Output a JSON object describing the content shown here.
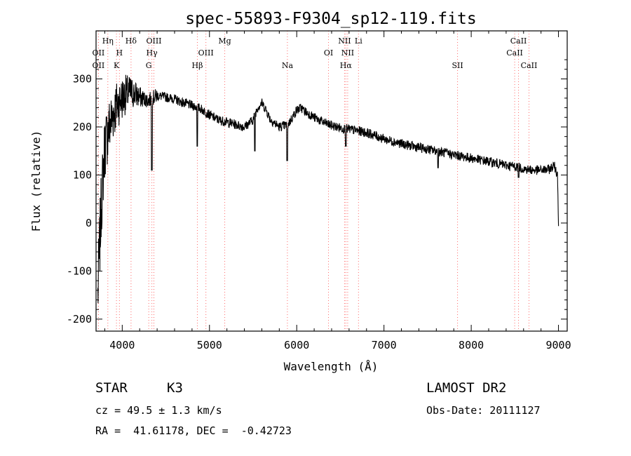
{
  "chart_data": {
    "type": "line",
    "title": "spec-55893-F9304_sp12-119.fits",
    "xlabel": "Wavelength (Å)",
    "ylabel": "Flux (relative)",
    "xlim": [
      3700,
      9100
    ],
    "ylim": [
      -225,
      400
    ],
    "x_ticks": [
      4000,
      5000,
      6000,
      7000,
      8000,
      9000
    ],
    "y_ticks": [
      -200,
      -100,
      0,
      100,
      200,
      300
    ],
    "series": [
      {
        "name": "flux",
        "color": "#000000",
        "envelope_x": [
          3720,
          3760,
          3800,
          3850,
          3900,
          3950,
          4000,
          4050,
          4100,
          4150,
          4200,
          4300,
          4400,
          4500,
          4600,
          4700,
          4800,
          4900,
          5000,
          5100,
          5200,
          5300,
          5400,
          5500,
          5550,
          5600,
          5650,
          5700,
          5800,
          5900,
          6000,
          6050,
          6100,
          6200,
          6300,
          6400,
          6500,
          6600,
          6700,
          6800,
          6900,
          7000,
          7200,
          7400,
          7600,
          7800,
          8000,
          8200,
          8400,
          8500,
          8600,
          8700,
          8800,
          8900,
          8950,
          8990,
          9000
        ],
        "envelope_y": [
          -150,
          40,
          160,
          200,
          230,
          250,
          260,
          270,
          272,
          268,
          262,
          255,
          265,
          262,
          258,
          250,
          245,
          238,
          225,
          215,
          210,
          205,
          200,
          215,
          240,
          250,
          235,
          215,
          200,
          205,
          235,
          240,
          232,
          220,
          210,
          203,
          198,
          195,
          192,
          188,
          182,
          175,
          165,
          157,
          150,
          142,
          135,
          128,
          120,
          118,
          113,
          110,
          110,
          112,
          120,
          100,
          0
        ],
        "dips": [
          [
            4340,
            110
          ],
          [
            4860,
            160
          ],
          [
            5890,
            130
          ],
          [
            5520,
            150
          ],
          [
            6563,
            160
          ],
          [
            7620,
            115
          ],
          [
            8542,
            95
          ]
        ],
        "noise_amplitude_below_4400": 80
      }
    ],
    "lines": [
      {
        "label": "Hη",
        "wave": 3835,
        "row": 1,
        "color": "#ff6b6b"
      },
      {
        "label": "OII",
        "wave": 3727,
        "row": 2,
        "color": "#ff6b6b"
      },
      {
        "label": "H",
        "wave": 3968,
        "row": 2,
        "color": "#ff6b6b"
      },
      {
        "label": "OII",
        "wave": 3727,
        "row": 3,
        "color": "#ff6b6b"
      },
      {
        "label": "K",
        "wave": 3934,
        "row": 3,
        "color": "#ff6b6b"
      },
      {
        "label": "Hδ",
        "wave": 4101,
        "row": 1,
        "color": "#ff6b6b"
      },
      {
        "label": "OIII",
        "wave": 4363,
        "row": 1,
        "color": "#ff6b6b"
      },
      {
        "label": "Hγ",
        "wave": 4340,
        "row": 2,
        "color": "#ff6b6b"
      },
      {
        "label": "G",
        "wave": 4304,
        "row": 3,
        "color": "#ff6b6b"
      },
      {
        "label": "Mg",
        "wave": 5175,
        "row": 1,
        "color": "#ff6b6b"
      },
      {
        "label": "OIII",
        "wave": 4959,
        "row": 2,
        "color": "#ff6b6b"
      },
      {
        "label": "Hβ",
        "wave": 4861,
        "row": 3,
        "color": "#ff6b6b"
      },
      {
        "label": "Na",
        "wave": 5893,
        "row": 3,
        "color": "#ff6b6b"
      },
      {
        "label": "NII",
        "wave": 6548,
        "row": 1,
        "color": "#ff6b6b"
      },
      {
        "label": "Li",
        "wave": 6708,
        "row": 1,
        "color": "#ff6b6b"
      },
      {
        "label": "OI",
        "wave": 6364,
        "row": 2,
        "color": "#ff6b6b"
      },
      {
        "label": "NII",
        "wave": 6584,
        "row": 2,
        "color": "#ff6b6b"
      },
      {
        "label": "Hα",
        "wave": 6563,
        "row": 3,
        "color": "#ff6b6b"
      },
      {
        "label": "SII",
        "wave": 7843,
        "row": 3,
        "color": "#ff6b6b"
      },
      {
        "label": "CaII",
        "wave": 8542,
        "row": 1,
        "color": "#ff6b6b"
      },
      {
        "label": "CaII",
        "wave": 8498,
        "row": 2,
        "color": "#ff6b6b"
      },
      {
        "label": "CaII",
        "wave": 8662,
        "row": 3,
        "color": "#ff6b6b"
      }
    ]
  },
  "info": {
    "class": "STAR",
    "subclass": "K3",
    "survey": "LAMOST DR2",
    "cz": "cz = 49.5 ± 1.3 km/s",
    "obs_date": "Obs-Date: 20111127",
    "coords": "RA =  41.61178, DEC =  -0.42723"
  }
}
